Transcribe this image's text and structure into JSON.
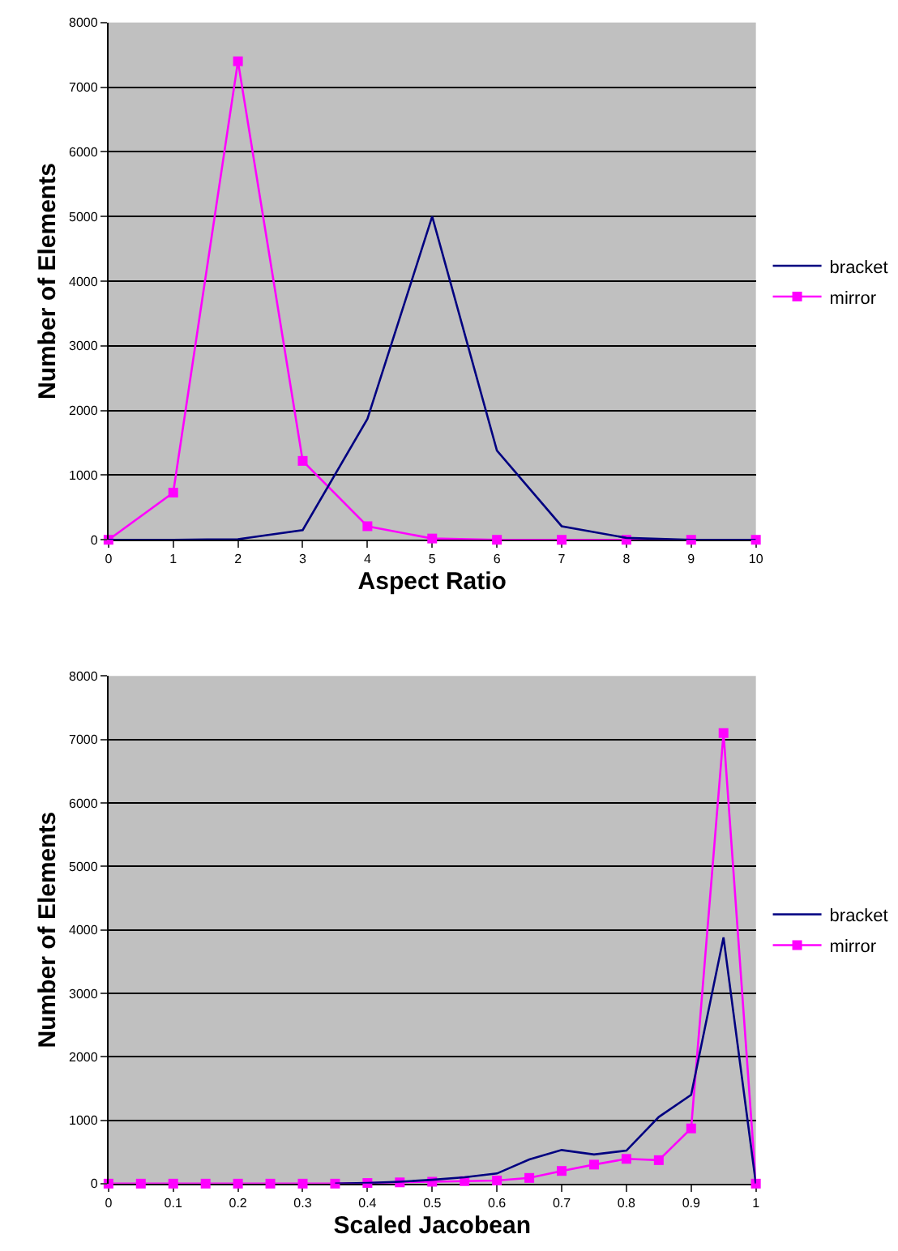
{
  "chart_data": [
    {
      "type": "line",
      "xlabel": "Aspect Ratio",
      "ylabel": "Number of Elements",
      "x": [
        0,
        1,
        2,
        3,
        4,
        5,
        6,
        7,
        8,
        9,
        10
      ],
      "series": [
        {
          "name": "bracket",
          "color": "#000080",
          "marker": "none",
          "values": [
            0,
            0,
            10,
            150,
            1870,
            5000,
            1380,
            210,
            30,
            0,
            0
          ]
        },
        {
          "name": "mirror",
          "color": "#ff00ff",
          "marker": "square",
          "values": [
            0,
            730,
            7400,
            1220,
            210,
            20,
            0,
            0,
            0,
            0,
            0
          ]
        }
      ],
      "xlim": [
        0,
        10
      ],
      "xticks": [
        0,
        1,
        2,
        3,
        4,
        5,
        6,
        7,
        8,
        9,
        10
      ],
      "ylim": [
        0,
        8000
      ],
      "yticks": [
        0,
        1000,
        2000,
        3000,
        4000,
        5000,
        6000,
        7000,
        8000
      ],
      "grid": "y",
      "legend": "right"
    },
    {
      "type": "line",
      "xlabel": "Scaled Jacobean",
      "ylabel": "Number of Elements",
      "x": [
        0,
        0.05,
        0.1,
        0.15,
        0.2,
        0.25,
        0.3,
        0.35,
        0.4,
        0.45,
        0.5,
        0.55,
        0.6,
        0.65,
        0.7,
        0.75,
        0.8,
        0.85,
        0.9,
        0.95,
        1
      ],
      "series": [
        {
          "name": "bracket",
          "color": "#000080",
          "marker": "none",
          "values": [
            null,
            null,
            null,
            null,
            null,
            null,
            null,
            0,
            10,
            30,
            60,
            100,
            160,
            380,
            530,
            460,
            520,
            1050,
            1400,
            3880,
            0
          ]
        },
        {
          "name": "mirror",
          "color": "#ff00ff",
          "marker": "square",
          "values": [
            0,
            0,
            0,
            0,
            0,
            0,
            0,
            0,
            10,
            20,
            30,
            40,
            50,
            90,
            200,
            300,
            390,
            370,
            870,
            7100,
            0
          ]
        }
      ],
      "xlim": [
        0,
        1
      ],
      "xticks": [
        0,
        0.1,
        0.2,
        0.3,
        0.4,
        0.5,
        0.6,
        0.7,
        0.8,
        0.9,
        1
      ],
      "ylim": [
        0,
        8000
      ],
      "yticks": [
        0,
        1000,
        2000,
        3000,
        4000,
        5000,
        6000,
        7000,
        8000
      ],
      "grid": "y",
      "legend": "right"
    }
  ]
}
